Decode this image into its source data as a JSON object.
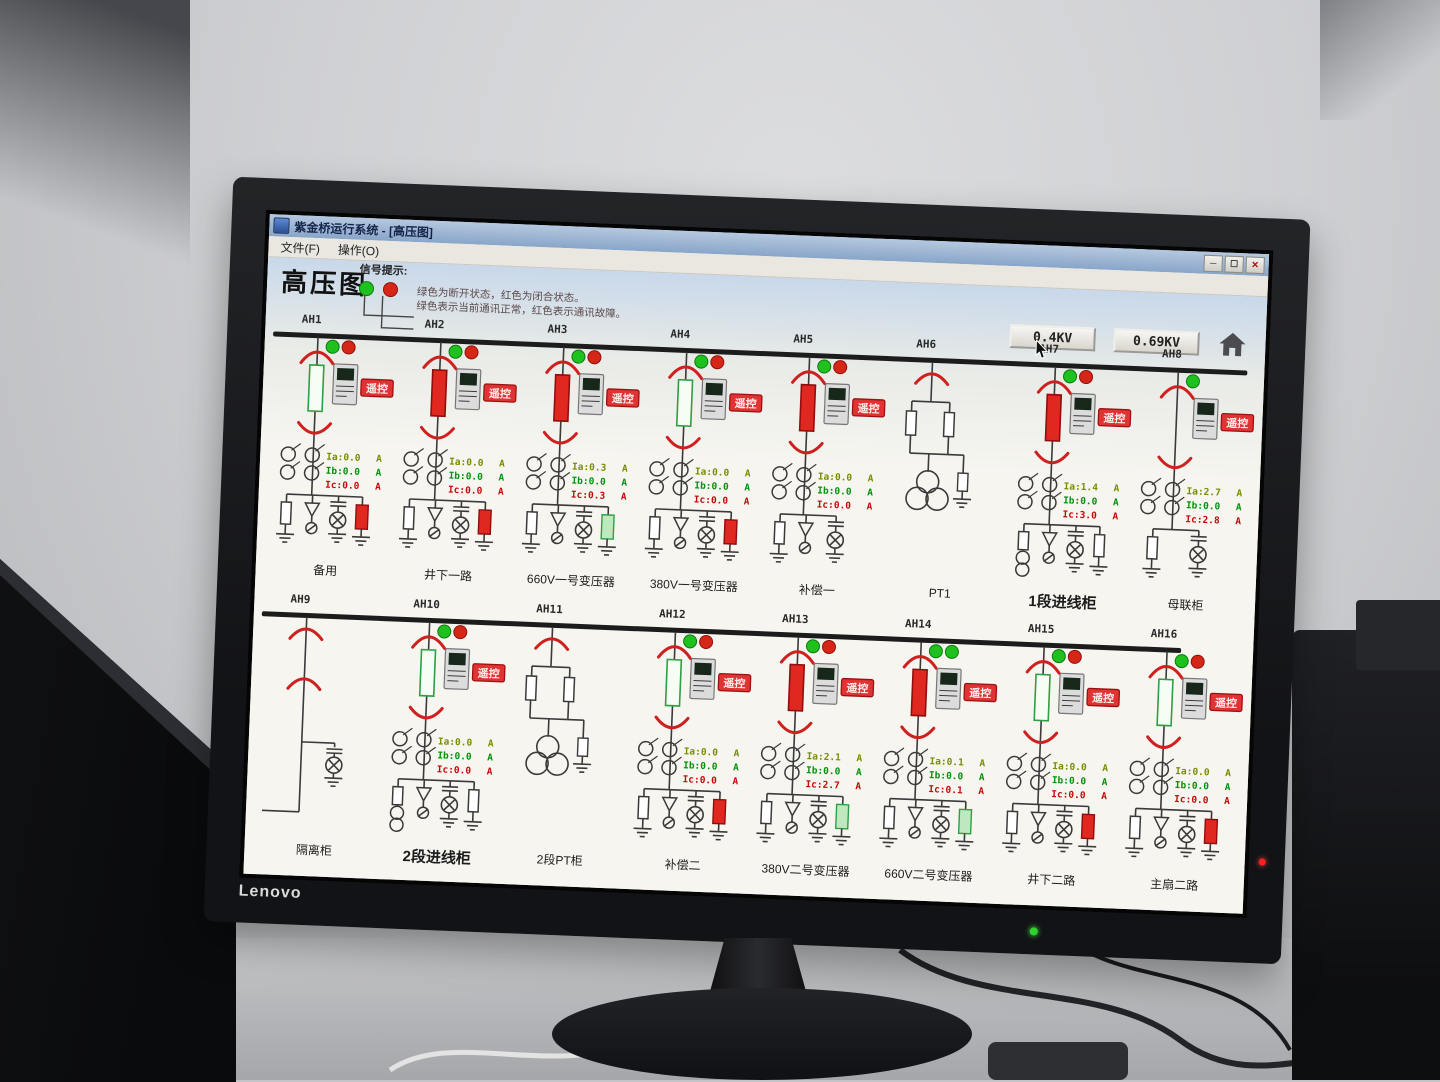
{
  "scene": {
    "brand": "Lenovo"
  },
  "window": {
    "title": "紫金桥运行系统 - [高压图]",
    "menu": [
      "文件(F)",
      "操作(O)"
    ],
    "controls": [
      "─",
      "☐",
      "✕"
    ]
  },
  "page": {
    "title": "高压图",
    "legend": {
      "heading": "信号提示:",
      "line1": "绿色为断开状态，红色为闭合状态。",
      "line2": "绿色表示当前通讯正常，红色表示通讯故障。"
    },
    "voltage_buttons": [
      {
        "label": "0.4KV"
      },
      {
        "label": "0.69KV"
      }
    ],
    "remote_label": "遥控",
    "unit": "A"
  },
  "colors": {
    "arc": "#cf2020",
    "dot_green": "#1fc11f",
    "dot_red": "#d62618",
    "breaker_closed_fill": "#e02820",
    "breaker_closed_stroke": "#8f0f0f",
    "breaker_open_fill": "#f6fdf4",
    "breaker_open_stroke": "#2f9e44",
    "remote_bg": "#e03434",
    "remote_border": "#9e1010",
    "reading_ia": "#7a8c00",
    "reading_ib": "#00930c",
    "reading_ic": "#c40a0a",
    "line": "#3a3a3a",
    "rect_red": "#e02820",
    "rect_green": "#bfe8bf"
  },
  "rows": [
    {
      "bus_width": 975,
      "bays": [
        {
          "id": "AH1",
          "label": "备用",
          "label_big": false,
          "type": "feeder",
          "dots": [
            "green",
            "red"
          ],
          "breaker": "open",
          "meter": true,
          "remote": true,
          "readings": {
            "ia": "Ia:0.0",
            "ib": "Ib:0.0",
            "ic": "Ic:0.0"
          },
          "bottom": [
            "fuse",
            "arrow",
            "lamp",
            "red"
          ]
        },
        {
          "id": "AH2",
          "label": "井下一路",
          "label_big": false,
          "type": "feeder",
          "dots": [
            "green",
            "red"
          ],
          "breaker": "closed",
          "meter": true,
          "remote": true,
          "readings": {
            "ia": "Ia:0.0",
            "ib": "Ib:0.0",
            "ic": "Ic:0.0"
          },
          "bottom": [
            "fuse",
            "arrow",
            "lamp",
            "red"
          ]
        },
        {
          "id": "AH3",
          "label": "660V一号变压器",
          "label_big": false,
          "type": "feeder",
          "dots": [
            "green",
            "red"
          ],
          "breaker": "closed",
          "meter": true,
          "remote": true,
          "readings": {
            "ia": "Ia:0.3",
            "ib": "Ib:0.0",
            "ic": "Ic:0.3"
          },
          "bottom": [
            "fuse",
            "arrow",
            "lamp",
            "green"
          ]
        },
        {
          "id": "AH4",
          "label": "380V一号变压器",
          "label_big": false,
          "type": "feeder",
          "dots": [
            "green",
            "red"
          ],
          "breaker": "open",
          "meter": true,
          "remote": true,
          "readings": {
            "ia": "Ia:0.0",
            "ib": "Ib:0.0",
            "ic": "Ic:0.0"
          },
          "bottom": [
            "fuse",
            "arrow",
            "lamp",
            "red"
          ]
        },
        {
          "id": "AH5",
          "label": "补偿一",
          "label_big": false,
          "type": "feeder",
          "dots": [
            "green",
            "red"
          ],
          "breaker": "closed",
          "meter": true,
          "remote": true,
          "readings": {
            "ia": "Ia:0.0",
            "ib": "Ib:0.0",
            "ic": "Ic:0.0"
          },
          "bottom": [
            "fuse",
            "arrow",
            "lamp"
          ]
        },
        {
          "id": "AH6",
          "label": "PT1",
          "label_big": false,
          "type": "pt",
          "dots": [],
          "breaker": null,
          "meter": false,
          "remote": false,
          "readings": null,
          "bottom": []
        },
        {
          "id": "AH7",
          "label": "1段进线柜",
          "label_big": true,
          "type": "feeder",
          "dots": [
            "green",
            "red"
          ],
          "breaker": "closed",
          "meter": true,
          "remote": true,
          "readings": {
            "ia": "Ia:1.4",
            "ib": "Ib:0.0",
            "ic": "Ic:3.0"
          },
          "bottom": [
            "fuseT",
            "arrow",
            "lamp",
            "fuse"
          ]
        },
        {
          "id": "AH8",
          "label": "母联柜",
          "label_big": false,
          "type": "bustie",
          "dots": [
            "green"
          ],
          "breaker": null,
          "meter": true,
          "remote": true,
          "readings": {
            "ia": "Ia:2.7",
            "ib": "Ib:0.0",
            "ic": "Ic:2.8"
          },
          "bottom": [
            "fuse",
            "lamp"
          ]
        }
      ]
    },
    {
      "bus_width": 920,
      "bays": [
        {
          "id": "AH9",
          "label": "隔离柜",
          "label_big": false,
          "type": "isolator",
          "dots": [],
          "breaker": null,
          "meter": false,
          "remote": false,
          "readings": null,
          "bottom": []
        },
        {
          "id": "AH10",
          "label": "2段进线柜",
          "label_big": true,
          "type": "feeder",
          "dots": [
            "green",
            "red"
          ],
          "breaker": "open",
          "meter": true,
          "remote": true,
          "readings": {
            "ia": "Ia:0.0",
            "ib": "Ib:0.0",
            "ic": "Ic:0.0"
          },
          "bottom": [
            "fuseT",
            "arrow",
            "lamp",
            "fuse"
          ]
        },
        {
          "id": "AH11",
          "label": "2段PT柜",
          "label_big": false,
          "type": "pt",
          "dots": [],
          "breaker": null,
          "meter": false,
          "remote": false,
          "readings": null,
          "bottom": []
        },
        {
          "id": "AH12",
          "label": "补偿二",
          "label_big": false,
          "type": "feeder",
          "dots": [
            "green",
            "red"
          ],
          "breaker": "open",
          "meter": true,
          "remote": true,
          "readings": {
            "ia": "Ia:0.0",
            "ib": "Ib:0.0",
            "ic": "Ic:0.0"
          },
          "bottom": [
            "fuse",
            "arrow",
            "lamp",
            "red"
          ]
        },
        {
          "id": "AH13",
          "label": "380V二号变压器",
          "label_big": false,
          "type": "feeder",
          "dots": [
            "green",
            "red"
          ],
          "breaker": "closed",
          "meter": true,
          "remote": true,
          "readings": {
            "ia": "Ia:2.1",
            "ib": "Ib:0.0",
            "ic": "Ic:2.7"
          },
          "bottom": [
            "fuse",
            "arrow",
            "lamp",
            "green"
          ]
        },
        {
          "id": "AH14",
          "label": "660V二号变压器",
          "label_big": false,
          "type": "feeder",
          "dots": [
            "green",
            "green"
          ],
          "breaker": "closed",
          "meter": true,
          "remote": true,
          "readings": {
            "ia": "Ia:0.1",
            "ib": "Ib:0.0",
            "ic": "Ic:0.1"
          },
          "bottom": [
            "fuse",
            "arrow",
            "lamp",
            "green"
          ]
        },
        {
          "id": "AH15",
          "label": "井下二路",
          "label_big": false,
          "type": "feeder",
          "dots": [
            "green",
            "red"
          ],
          "breaker": "open",
          "meter": true,
          "remote": true,
          "readings": {
            "ia": "Ia:0.0",
            "ib": "Ib:0.0",
            "ic": "Ic:0.0"
          },
          "bottom": [
            "fuse",
            "arrow",
            "lamp",
            "red"
          ]
        },
        {
          "id": "AH16",
          "label": "主扇二路",
          "label_big": false,
          "type": "feeder",
          "dots": [
            "green",
            "red"
          ],
          "breaker": "open",
          "meter": true,
          "remote": true,
          "readings": {
            "ia": "Ia:0.0",
            "ib": "Ib:0.0",
            "ic": "Ic:0.0"
          },
          "bottom": [
            "fuse",
            "arrow",
            "lamp",
            "red"
          ]
        }
      ]
    }
  ]
}
